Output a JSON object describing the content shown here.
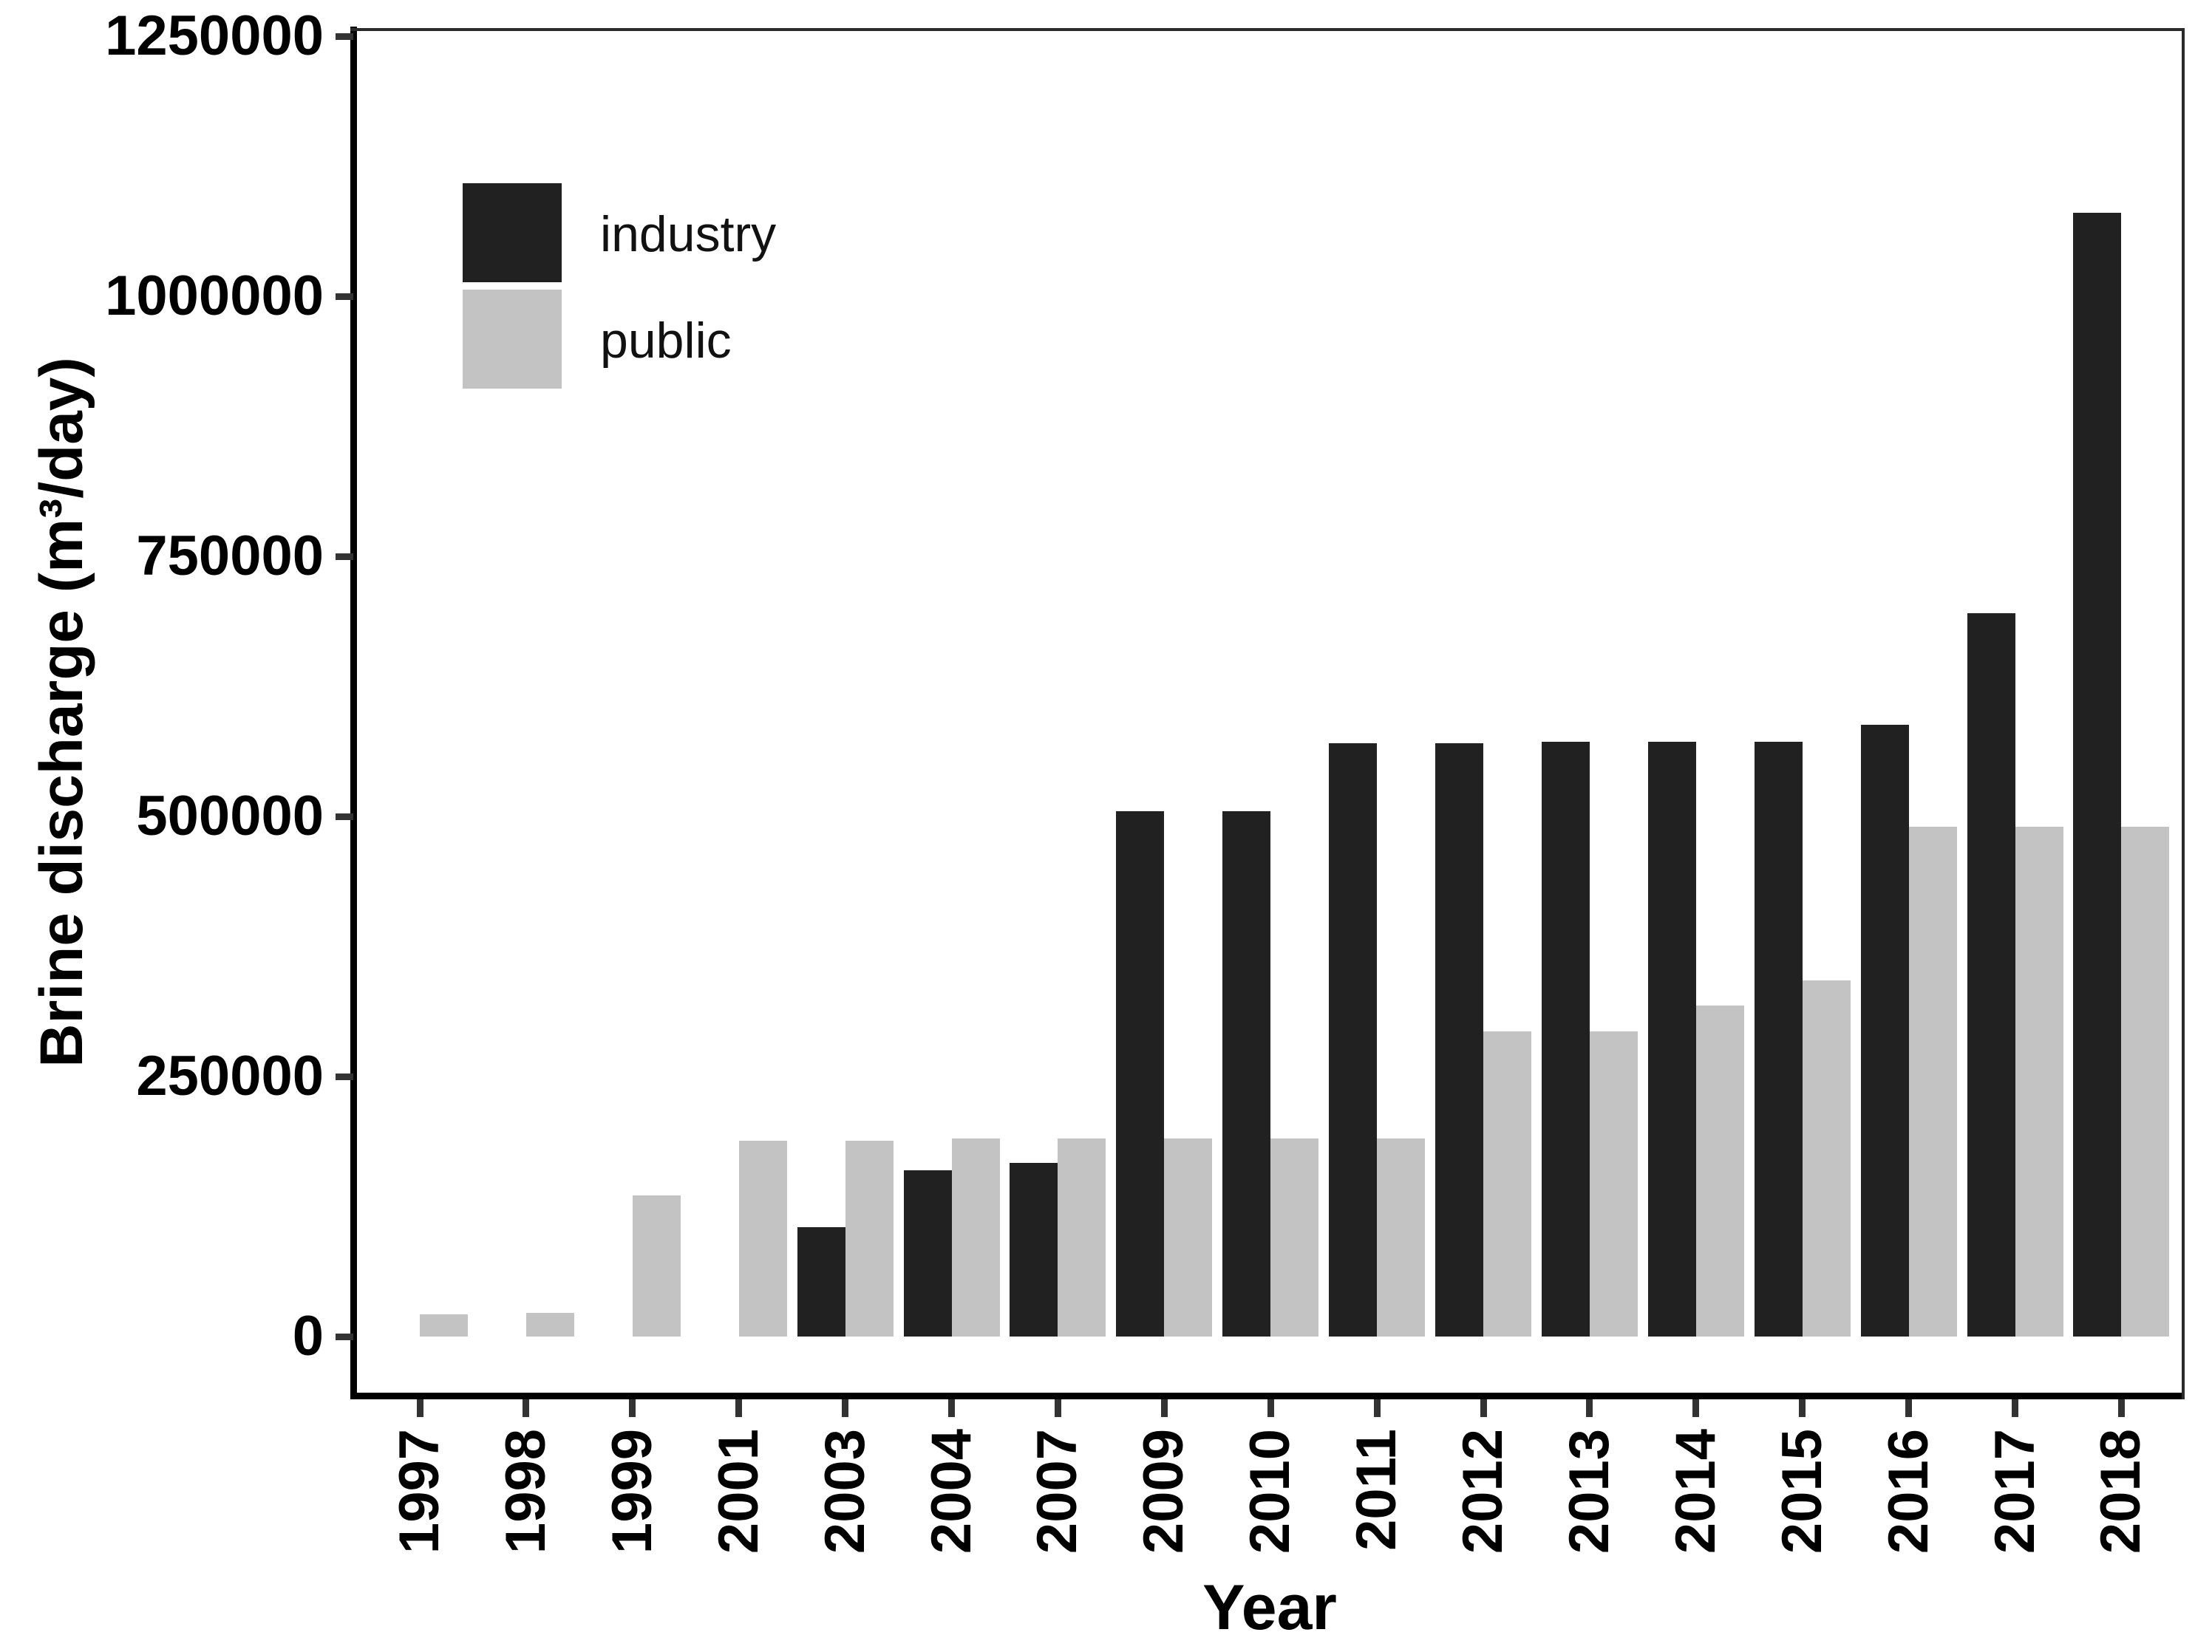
{
  "y_axis": {
    "label": "Brine discharge (m³/day)",
    "ticks": [
      0,
      250000,
      500000,
      750000,
      1000000,
      1250000
    ]
  },
  "x_axis": {
    "label": "Year"
  },
  "legend": {
    "items": [
      {
        "label": "industry",
        "color": "#212121"
      },
      {
        "label": "public",
        "color": "#c3c3c3"
      }
    ]
  },
  "chart_data": {
    "type": "bar",
    "title": "",
    "xlabel": "Year",
    "ylabel": "Brine discharge (m³/day)",
    "ylim": [
      0,
      1250000
    ],
    "grid": false,
    "legend_position": "top-left-inside",
    "categories": [
      "1997",
      "1998",
      "1999",
      "2001",
      "2003",
      "2004",
      "2007",
      "2009",
      "2010",
      "2011",
      "2012",
      "2013",
      "2014",
      "2015",
      "2016",
      "2017",
      "2018"
    ],
    "series": [
      {
        "name": "industry",
        "color": "#212121",
        "values": [
          null,
          null,
          null,
          null,
          105000,
          160000,
          167000,
          505000,
          505000,
          570000,
          570000,
          572000,
          572000,
          572000,
          588000,
          695000,
          1080000
        ]
      },
      {
        "name": "public",
        "color": "#c3c3c3",
        "values": [
          21000,
          23000,
          136000,
          188000,
          188000,
          190000,
          190000,
          190000,
          190000,
          190000,
          293000,
          293000,
          318000,
          342000,
          490000,
          490000,
          490000
        ]
      }
    ]
  }
}
